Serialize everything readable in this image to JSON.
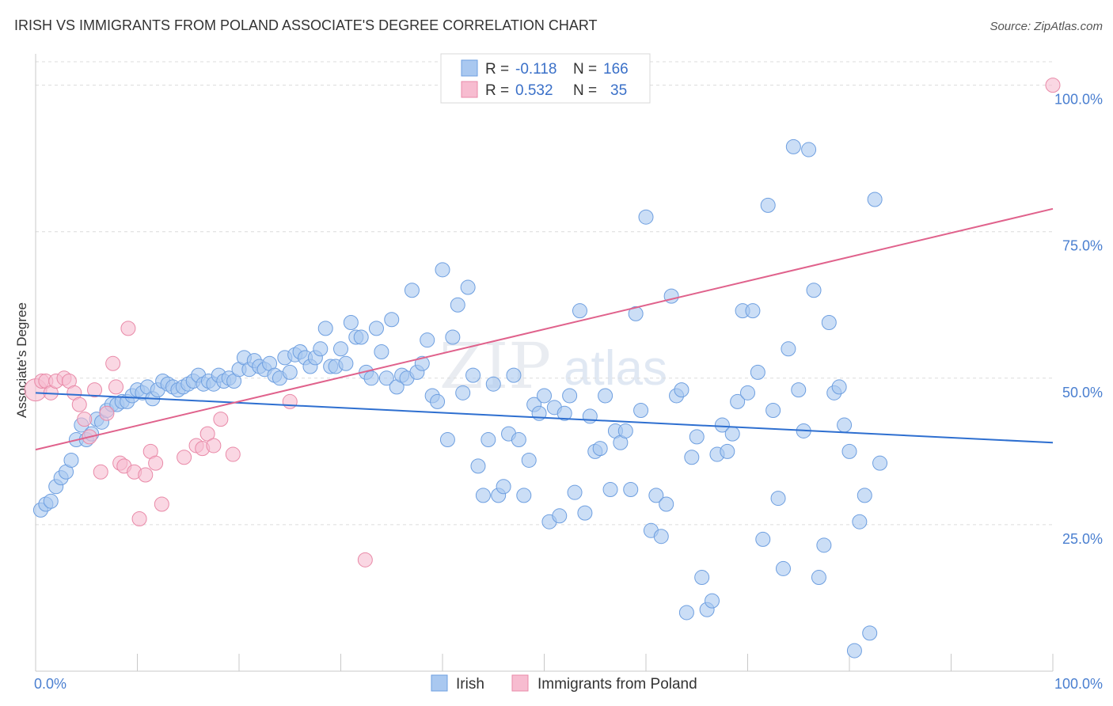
{
  "chart_data": {
    "type": "scatter",
    "title": "IRISH VS IMMIGRANTS FROM POLAND ASSOCIATE'S DEGREE CORRELATION CHART",
    "source": "Source: ZipAtlas.com",
    "ylabel": "Associate's Degree",
    "xlim": [
      0,
      100
    ],
    "ylim": [
      0,
      104
    ],
    "x_tick_labels": [
      "0.0%",
      "100.0%"
    ],
    "y_ticks": [
      {
        "value": 100,
        "label": "100.0%"
      },
      {
        "value": 75,
        "label": "75.0%"
      },
      {
        "value": 50,
        "label": "50.0%"
      },
      {
        "value": 25,
        "label": "25.0%"
      }
    ],
    "grid": true,
    "legend_position": "top-center",
    "watermark": {
      "zip": "ZIP",
      "atlas": "atlas"
    },
    "legend": {
      "r_label": "R =",
      "n_label": "N =",
      "rows": [
        {
          "r": "-0.118",
          "n": "166"
        },
        {
          "r": "0.532",
          "n": "35"
        }
      ]
    },
    "colors": {
      "irish_fill": "#a9c8f0",
      "irish_stroke": "#6e9fe0",
      "irish_line": "#2e6fd0",
      "poland_fill": "#f7bcd0",
      "poland_stroke": "#e98aa8",
      "poland_line": "#e0628c"
    },
    "series": [
      {
        "name": "Irish",
        "trend": {
          "x": [
            0,
            100
          ],
          "y": [
            47.5,
            39.0
          ]
        },
        "points": [
          [
            0.5,
            27.5
          ],
          [
            1,
            28.5
          ],
          [
            1.5,
            29
          ],
          [
            2,
            31.5
          ],
          [
            2.5,
            33
          ],
          [
            3,
            34
          ],
          [
            3.5,
            36
          ],
          [
            4,
            39.5
          ],
          [
            4.5,
            42
          ],
          [
            5,
            39.5
          ],
          [
            5.5,
            40.5
          ],
          [
            6,
            43
          ],
          [
            6.5,
            42.5
          ],
          [
            7,
            44.5
          ],
          [
            7.5,
            45.5
          ],
          [
            8,
            45.5
          ],
          [
            8.5,
            46
          ],
          [
            9,
            46
          ],
          [
            9.5,
            47
          ],
          [
            10,
            48
          ],
          [
            10.5,
            47.5
          ],
          [
            11,
            48.5
          ],
          [
            11.5,
            46.5
          ],
          [
            12,
            48
          ],
          [
            12.5,
            49.5
          ],
          [
            13,
            49
          ],
          [
            13.5,
            48.5
          ],
          [
            14,
            48
          ],
          [
            14.5,
            48.5
          ],
          [
            15,
            49
          ],
          [
            15.5,
            49.5
          ],
          [
            16,
            50.5
          ],
          [
            16.5,
            49
          ],
          [
            17,
            49.5
          ],
          [
            17.5,
            49
          ],
          [
            18,
            50.5
          ],
          [
            18.5,
            49.5
          ],
          [
            19,
            50
          ],
          [
            19.5,
            49.5
          ],
          [
            20,
            51.5
          ],
          [
            20.5,
            53.5
          ],
          [
            21,
            51.5
          ],
          [
            21.5,
            53
          ],
          [
            22,
            52
          ],
          [
            22.5,
            51.5
          ],
          [
            23,
            52.5
          ],
          [
            23.5,
            50.5
          ],
          [
            24,
            50
          ],
          [
            24.5,
            53.5
          ],
          [
            25,
            51
          ],
          [
            25.5,
            54
          ],
          [
            26,
            54.5
          ],
          [
            26.5,
            53.5
          ],
          [
            27,
            52
          ],
          [
            27.5,
            53.5
          ],
          [
            28,
            55
          ],
          [
            28.5,
            58.5
          ],
          [
            29,
            52
          ],
          [
            29.5,
            52
          ],
          [
            30,
            55
          ],
          [
            30.5,
            52.5
          ],
          [
            31,
            59.5
          ],
          [
            31.5,
            57
          ],
          [
            32,
            57
          ],
          [
            32.5,
            51
          ],
          [
            33,
            50
          ],
          [
            33.5,
            58.5
          ],
          [
            34,
            54.5
          ],
          [
            34.5,
            50
          ],
          [
            35,
            60
          ],
          [
            35.5,
            48.5
          ],
          [
            36,
            50.5
          ],
          [
            36.5,
            50
          ],
          [
            37,
            65
          ],
          [
            37.5,
            51
          ],
          [
            38,
            52.5
          ],
          [
            38.5,
            56.5
          ],
          [
            39,
            47
          ],
          [
            39.5,
            46
          ],
          [
            40,
            68.5
          ],
          [
            40.5,
            39.5
          ],
          [
            41,
            57
          ],
          [
            41.5,
            62.5
          ],
          [
            42,
            47.5
          ],
          [
            42.5,
            65.5
          ],
          [
            43,
            50.5
          ],
          [
            43.5,
            35
          ],
          [
            44,
            30
          ],
          [
            44.5,
            39.5
          ],
          [
            45,
            49
          ],
          [
            45.5,
            30
          ],
          [
            46,
            31.5
          ],
          [
            46.5,
            40.5
          ],
          [
            47,
            50.5
          ],
          [
            47.5,
            39.5
          ],
          [
            48,
            30
          ],
          [
            48.5,
            36
          ],
          [
            49,
            45.5
          ],
          [
            49.5,
            44
          ],
          [
            50,
            47
          ],
          [
            50.5,
            25.5
          ],
          [
            51,
            45
          ],
          [
            51.5,
            26.5
          ],
          [
            52,
            44
          ],
          [
            52.5,
            47
          ],
          [
            53,
            30.5
          ],
          [
            53.5,
            61.5
          ],
          [
            54,
            27
          ],
          [
            54.5,
            43.5
          ],
          [
            55,
            37.5
          ],
          [
            55.5,
            38
          ],
          [
            56,
            47
          ],
          [
            56.5,
            31
          ],
          [
            57,
            41
          ],
          [
            57.5,
            39
          ],
          [
            58,
            41
          ],
          [
            58.5,
            31
          ],
          [
            59,
            61
          ],
          [
            59.5,
            44.5
          ],
          [
            60,
            77.5
          ],
          [
            60.5,
            24
          ],
          [
            61,
            30
          ],
          [
            61.5,
            23
          ],
          [
            62,
            28.5
          ],
          [
            62.5,
            64
          ],
          [
            63,
            47
          ],
          [
            63.5,
            48
          ],
          [
            64,
            10
          ],
          [
            64.5,
            36.5
          ],
          [
            65,
            40
          ],
          [
            65.5,
            16
          ],
          [
            66,
            10.5
          ],
          [
            66.5,
            12
          ],
          [
            67,
            37
          ],
          [
            67.5,
            42
          ],
          [
            68,
            37.5
          ],
          [
            68.5,
            40.5
          ],
          [
            69,
            46
          ],
          [
            69.5,
            61.5
          ],
          [
            70,
            47.5
          ],
          [
            70.5,
            61.5
          ],
          [
            71,
            51
          ],
          [
            71.5,
            22.5
          ],
          [
            72,
            79.5
          ],
          [
            72.5,
            44.5
          ],
          [
            73,
            29.5
          ],
          [
            73.5,
            17.5
          ],
          [
            74,
            55
          ],
          [
            74.5,
            89.5
          ],
          [
            75,
            48
          ],
          [
            75.5,
            41
          ],
          [
            76,
            89
          ],
          [
            76.5,
            65
          ],
          [
            77,
            16
          ],
          [
            77.5,
            21.5
          ],
          [
            78,
            59.5
          ],
          [
            78.5,
            47.5
          ],
          [
            79,
            48.5
          ],
          [
            79.5,
            42
          ],
          [
            80,
            37.5
          ],
          [
            80.5,
            3.5
          ],
          [
            81,
            25.5
          ],
          [
            81.5,
            30
          ],
          [
            82,
            6.5
          ],
          [
            82.5,
            80.5
          ],
          [
            83,
            35.5
          ]
        ]
      },
      {
        "name": "Immigrants from Poland",
        "trend": {
          "x": [
            0,
            100
          ],
          "y": [
            37.8,
            78.9
          ]
        },
        "points": [
          [
            0,
            48
          ],
          [
            0.6,
            49.5
          ],
          [
            1,
            49.5
          ],
          [
            1.5,
            47.5
          ],
          [
            2,
            49.5
          ],
          [
            2.8,
            50
          ],
          [
            3.3,
            49.5
          ],
          [
            3.8,
            47.5
          ],
          [
            4.3,
            45.5
          ],
          [
            4.8,
            43
          ],
          [
            5.3,
            40
          ],
          [
            5.8,
            48
          ],
          [
            6.4,
            34
          ],
          [
            7,
            44
          ],
          [
            7.6,
            52.5
          ],
          [
            7.9,
            48.5
          ],
          [
            8.3,
            35.5
          ],
          [
            8.7,
            35
          ],
          [
            9.1,
            58.5
          ],
          [
            9.7,
            34
          ],
          [
            10.2,
            26
          ],
          [
            10.8,
            33.5
          ],
          [
            11.3,
            37.5
          ],
          [
            11.8,
            35.5
          ],
          [
            12.4,
            28.5
          ],
          [
            14.6,
            36.5
          ],
          [
            15.8,
            38.5
          ],
          [
            16.4,
            38
          ],
          [
            16.9,
            40.5
          ],
          [
            17.5,
            38.5
          ],
          [
            18.2,
            43
          ],
          [
            19.4,
            37
          ],
          [
            25,
            46
          ],
          [
            32.4,
            19
          ],
          [
            100,
            100
          ]
        ]
      }
    ]
  }
}
